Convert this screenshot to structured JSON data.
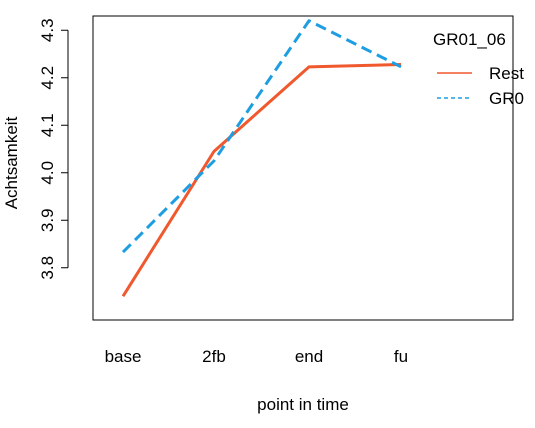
{
  "chart_data": {
    "type": "line",
    "title": "",
    "xlabel": "point in time",
    "ylabel": "Achtsamkeit",
    "categories": [
      "base",
      "2fb",
      "end",
      "fu"
    ],
    "yticks": [
      "3.8",
      "3.9",
      "4.0",
      "4.1",
      "4.2",
      "4.3"
    ],
    "ylim": [
      3.69,
      4.33
    ],
    "grid": false,
    "legend": {
      "title": "GR01_06",
      "placement": "top-right",
      "entries": [
        "Rest",
        "GR0"
      ]
    },
    "series": [
      {
        "name": "Rest",
        "values": [
          3.74,
          4.045,
          4.223,
          4.228
        ],
        "color": "#f0592e",
        "dash": "solid"
      },
      {
        "name": "GR0",
        "values": [
          3.833,
          4.025,
          4.32,
          4.223
        ],
        "color": "#1e9ee0",
        "dash": "dashed"
      }
    ]
  }
}
